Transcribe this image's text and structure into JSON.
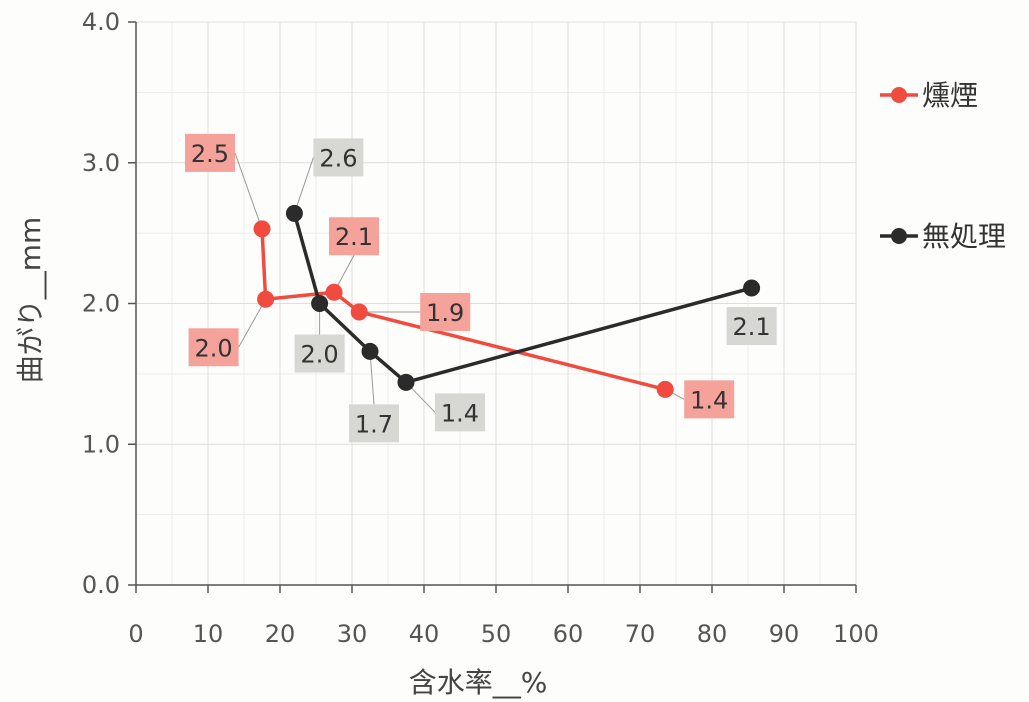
{
  "chart_data": {
    "type": "line",
    "xlabel": "含水率__%",
    "ylabel": "曲がり__mm",
    "xlim": [
      0,
      100
    ],
    "ylim": [
      0,
      4.0
    ],
    "xticks": [
      0,
      10,
      20,
      30,
      40,
      50,
      60,
      70,
      80,
      90,
      100
    ],
    "yticks": [
      0.0,
      1.0,
      2.0,
      3.0,
      4.0
    ],
    "ytick_labels": [
      "0.0",
      "1.0",
      "2.0",
      "3.0",
      "4.0"
    ],
    "grid": true,
    "legend_position": "right",
    "series": [
      {
        "name": "燻煙",
        "color": "#f04b3e",
        "label_bg": "#f5a29a",
        "points": [
          {
            "x": 17.5,
            "y": 2.53,
            "label": "2.5"
          },
          {
            "x": 18.0,
            "y": 2.03,
            "label": "2.0"
          },
          {
            "x": 27.5,
            "y": 2.08,
            "label": "2.1"
          },
          {
            "x": 31.0,
            "y": 1.94,
            "label": "1.9"
          },
          {
            "x": 73.5,
            "y": 1.39,
            "label": "1.4"
          }
        ]
      },
      {
        "name": "無処理",
        "color": "#2b2b2b",
        "label_bg": "#d7d7d4",
        "points": [
          {
            "x": 22.0,
            "y": 2.64,
            "label": "2.6"
          },
          {
            "x": 25.5,
            "y": 2.0,
            "label": "2.0"
          },
          {
            "x": 32.5,
            "y": 1.66,
            "label": "1.7"
          },
          {
            "x": 37.5,
            "y": 1.44,
            "label": "1.4"
          },
          {
            "x": 85.5,
            "y": 2.11,
            "label": "2.1"
          }
        ]
      }
    ]
  }
}
